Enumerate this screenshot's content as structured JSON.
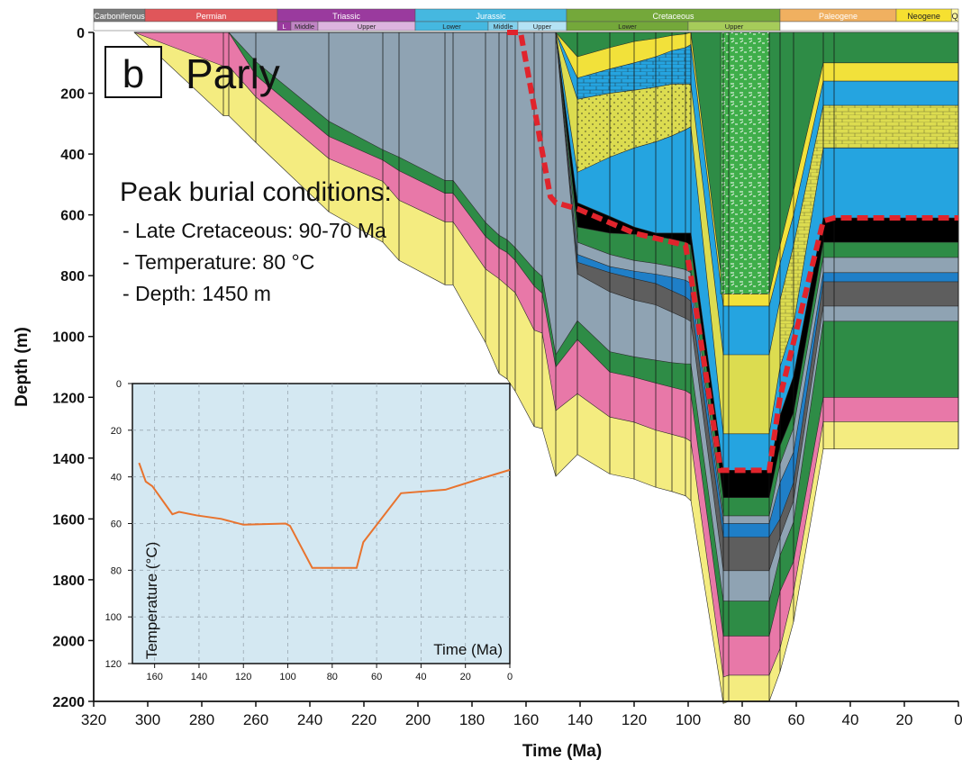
{
  "colors": {
    "pink": "#e878a8",
    "yellow": "#f4ec80",
    "slate": "#8fa3b3",
    "green": "#2e8c46",
    "blue": "#25a4e0",
    "darkblue": "#1f7fc8",
    "grey": "#5e5e5e",
    "black": "#000000",
    "olive": "#dcdc50",
    "gold": "#f2e13a",
    "patgreen": "#3fae4a",
    "red": "#e0242c",
    "inset_bg": "#d4e8f2",
    "inset_line": "#e8732e"
  },
  "timescale": {
    "periods": [
      {
        "name": "Carboniferous",
        "start": 320,
        "end": 301,
        "color": "#7a7a7a",
        "text": "#ffffff"
      },
      {
        "name": "Permian",
        "start": 301,
        "end": 252,
        "color": "#e0565a",
        "text": "#ffffff"
      },
      {
        "name": "Triassic",
        "start": 252,
        "end": 201,
        "color": "#9a3a9e",
        "text": "#ffffff"
      },
      {
        "name": "Jurassic",
        "start": 201,
        "end": 145,
        "color": "#45b8e0",
        "text": "#ffffff"
      },
      {
        "name": "Cretaceous",
        "start": 145,
        "end": 66,
        "color": "#74a83a",
        "text": "#ffffff"
      },
      {
        "name": "Paleogene",
        "start": 66,
        "end": 23,
        "color": "#f0b060",
        "text": "#ffffff"
      },
      {
        "name": "Neogene",
        "start": 23,
        "end": 2.6,
        "color": "#f6e030",
        "text": "#222222"
      },
      {
        "name": "Q",
        "start": 2.6,
        "end": 0,
        "color": "#fff8a0",
        "text": "#222222"
      }
    ],
    "epochs": [
      {
        "name": "",
        "start": 320,
        "end": 252,
        "color": "#ffffff",
        "text": "#222222"
      },
      {
        "name": "L",
        "start": 252,
        "end": 247,
        "color": "#9a3a9e",
        "text": "#ffffff"
      },
      {
        "name": "Middle",
        "start": 247,
        "end": 237,
        "color": "#c084c4",
        "text": "#222222"
      },
      {
        "name": "Upper",
        "start": 237,
        "end": 201,
        "color": "#dcb4de",
        "text": "#222222"
      },
      {
        "name": "Lower",
        "start": 201,
        "end": 174,
        "color": "#45b8e0",
        "text": "#222222"
      },
      {
        "name": "Middle",
        "start": 174,
        "end": 163,
        "color": "#82d0ec",
        "text": "#222222"
      },
      {
        "name": "Upper",
        "start": 163,
        "end": 145,
        "color": "#b4e2f4",
        "text": "#222222"
      },
      {
        "name": "Lower",
        "start": 145,
        "end": 100,
        "color": "#74a83a",
        "text": "#222222"
      },
      {
        "name": "Upper",
        "start": 100,
        "end": 66,
        "color": "#a6cc5a",
        "text": "#222222"
      },
      {
        "name": "",
        "start": 66,
        "end": 0,
        "color": "#ffffff",
        "text": "#222222"
      }
    ]
  },
  "labels": {
    "panel_letter": "b",
    "panel_title": "Parly",
    "peak_heading": "Peak burial conditions:",
    "peak_lines": [
      "- Late Cretaceous: 90-70 Ma",
      "- Temperature: 80 °C",
      "- Depth: 1450 m"
    ]
  },
  "chart_data": [
    {
      "type": "area",
      "title": "Parly",
      "xlabel": "Time (Ma)",
      "ylabel": "Depth (m)",
      "xlim": [
        320,
        0
      ],
      "ylim": [
        2200,
        0
      ],
      "xticks": [
        320,
        300,
        280,
        260,
        240,
        220,
        200,
        180,
        160,
        140,
        120,
        100,
        80,
        60,
        40,
        20,
        0
      ],
      "yticks": [
        0,
        200,
        400,
        600,
        800,
        1000,
        1200,
        1400,
        1600,
        1800,
        2000,
        2200
      ],
      "x": [
        305,
        272,
        270,
        260,
        233,
        213,
        207,
        190,
        187,
        175,
        170,
        167,
        164,
        157,
        154,
        149,
        141,
        129,
        120,
        112,
        106,
        101,
        99,
        87,
        85,
        70,
        66,
        61,
        50,
        46,
        0
      ],
      "horizons": [
        {
          "color": "yellow",
          "depth": [
            0,
            274,
            274,
            362,
            590,
            690,
            750,
            830,
            830,
            1020,
            1122,
            1140,
            1180,
            1296,
            1303,
            1460,
            1388,
            1452,
            1469,
            1496,
            1510,
            1524,
            1540,
            2207,
            2200,
            2200,
            2102,
            1938,
            1370,
            1370,
            1370
          ]
        },
        {
          "color": "pink",
          "depth": [
            0,
            111,
            111,
            212,
            415,
            490,
            552,
            623,
            623,
            778,
            810,
            833,
            856,
            979,
            989,
            1244,
            1188,
            1265,
            1282,
            1308,
            1322,
            1334,
            1345,
            2120,
            2114,
            2114,
            2026,
            1840,
            1280,
            1280,
            1280
          ]
        },
        {
          "color": "green",
          "depth": [
            0,
            0,
            0,
            141,
            342,
            420,
            455,
            529,
            529,
            671,
            709,
            724,
            750,
            834,
            858,
            1100,
            1010,
            1117,
            1134,
            1153,
            1167,
            1178,
            1189,
            1985,
            1985,
            1985,
            1838,
            1740,
            1200,
            1200,
            1200
          ]
        },
        {
          "color": "slate",
          "depth": [
            0,
            0,
            0,
            96,
            292,
            386,
            410,
            487,
            487,
            625,
            667,
            682,
            708,
            779,
            803,
            1060,
            948,
            1050,
            1067,
            1078,
            1086,
            1090,
            1090,
            1870,
            1870,
            1870,
            1720,
            1610,
            950,
            950,
            950
          ]
        },
        {
          "color": "grey",
          "depth": [
            0,
            0,
            0,
            0,
            0,
            0,
            0,
            0,
            0,
            0,
            0,
            0,
            0,
            0,
            0,
            0,
            794,
            853,
            880,
            896,
            920,
            940,
            951,
            1770,
            1770,
            1770,
            1660,
            1540,
            900,
            900,
            900
          ]
        },
        {
          "color": "darkblue",
          "depth": [
            0,
            0,
            0,
            0,
            0,
            0,
            0,
            0,
            0,
            0,
            0,
            0,
            0,
            0,
            0,
            0,
            756,
            790,
            810,
            826,
            850,
            870,
            884,
            1660,
            1660,
            1660,
            1600,
            1480,
            820,
            820,
            820
          ]
        },
        {
          "color": "slate",
          "depth": [
            0,
            0,
            0,
            0,
            0,
            0,
            0,
            0,
            0,
            0,
            0,
            0,
            0,
            0,
            0,
            0,
            730,
            770,
            785,
            795,
            805,
            815,
            825,
            1615,
            1615,
            1615,
            1480,
            1380,
            790,
            790,
            790
          ]
        },
        {
          "color": "green",
          "depth": [
            0,
            0,
            0,
            0,
            0,
            0,
            0,
            0,
            0,
            0,
            0,
            0,
            0,
            0,
            0,
            0,
            690,
            730,
            750,
            760,
            770,
            780,
            790,
            1590,
            1590,
            1590,
            1420,
            1300,
            740,
            740,
            740
          ]
        },
        {
          "color": "black",
          "depth": [
            0,
            0,
            0,
            0,
            0,
            0,
            0,
            0,
            0,
            0,
            0,
            0,
            0,
            0,
            0,
            0,
            640,
            660,
            664,
            670,
            680,
            690,
            700,
            1530,
            1530,
            1530,
            1360,
            1250,
            690,
            690,
            690
          ]
        },
        {
          "color": "blue",
          "depth": [
            0,
            0,
            0,
            0,
            0,
            0,
            0,
            0,
            0,
            0,
            0,
            0,
            0,
            0,
            0,
            0,
            560,
            605,
            640,
            660,
            660,
            660,
            660,
            1440,
            1440,
            1440,
            1260,
            1130,
            610,
            610,
            610
          ]
        },
        {
          "color": "olive",
          "depth": [
            0,
            0,
            0,
            0,
            0,
            0,
            0,
            0,
            0,
            0,
            0,
            0,
            0,
            0,
            0,
            0,
            460,
            410,
            380,
            360,
            340,
            320,
            310,
            1320,
            1320,
            1320,
            1100,
            960,
            380,
            380,
            380
          ]
        },
        {
          "color": "blue",
          "depth": [
            0,
            0,
            0,
            0,
            0,
            0,
            0,
            0,
            0,
            0,
            0,
            0,
            0,
            0,
            0,
            0,
            220,
            200,
            190,
            180,
            170,
            170,
            170,
            1060,
            1060,
            1060,
            880,
            700,
            240,
            240,
            240
          ]
        },
        {
          "color": "gold",
          "depth": [
            0,
            0,
            0,
            0,
            0,
            0,
            0,
            0,
            0,
            0,
            0,
            0,
            0,
            0,
            0,
            0,
            150,
            120,
            100,
            80,
            60,
            50,
            40,
            900,
            900,
            900,
            760,
            600,
            160,
            160,
            160
          ]
        },
        {
          "color": "green",
          "depth": [
            0,
            0,
            0,
            0,
            0,
            0,
            0,
            0,
            0,
            0,
            0,
            0,
            0,
            0,
            0,
            0,
            80,
            50,
            30,
            20,
            10,
            5,
            0,
            860,
            860,
            860,
            700,
            520,
            100,
            100,
            100
          ]
        }
      ],
      "peak_burial_outline": {
        "x": [
          167,
          162,
          151,
          149,
          141,
          120,
          101,
          99,
          88,
          70,
          66,
          50,
          46,
          0
        ],
        "depth": [
          0,
          0,
          540,
          560,
          580,
          660,
          700,
          800,
          1440,
          1440,
          1200,
          620,
          610,
          610
        ]
      }
    },
    {
      "type": "line",
      "title": "",
      "xlabel": "Time (Ma)",
      "ylabel": "Temperature (°C)",
      "xlim": [
        170,
        0
      ],
      "ylim": [
        120,
        0
      ],
      "xticks": [
        160,
        140,
        120,
        100,
        80,
        60,
        40,
        20,
        0
      ],
      "yticks": [
        0,
        20,
        40,
        60,
        80,
        100,
        120
      ],
      "x": [
        167,
        164,
        161,
        152,
        149,
        141,
        130,
        120,
        101,
        99,
        89,
        69,
        66,
        49,
        29,
        14,
        0
      ],
      "y": [
        34,
        42,
        44,
        56,
        55,
        56.5,
        58,
        60.5,
        60,
        61,
        79,
        79,
        68,
        47,
        45.5,
        41,
        37
      ]
    }
  ]
}
